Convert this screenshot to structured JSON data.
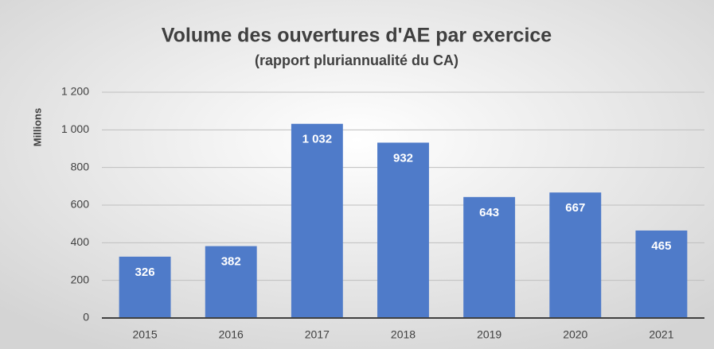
{
  "chart_data": {
    "type": "bar",
    "title": "Volume des ouvertures d'AE par exercice",
    "subtitle": "(rapport pluriannualité du CA)",
    "ylabel": "Millions",
    "categories": [
      "2015",
      "2016",
      "2017",
      "2018",
      "2019",
      "2020",
      "2021"
    ],
    "values": [
      326,
      382,
      1032,
      932,
      643,
      667,
      465
    ],
    "value_labels": [
      "326",
      "382",
      "1 032",
      "932",
      "643",
      "667",
      "465"
    ],
    "color": "#4f7bc9",
    "ylim": [
      0,
      1200
    ],
    "yticks": [
      0,
      200,
      400,
      600,
      800,
      {
        "value": 1000,
        "label": "1 000"
      },
      {
        "value": 1200,
        "label": "1 200"
      }
    ],
    "grid": true
  }
}
